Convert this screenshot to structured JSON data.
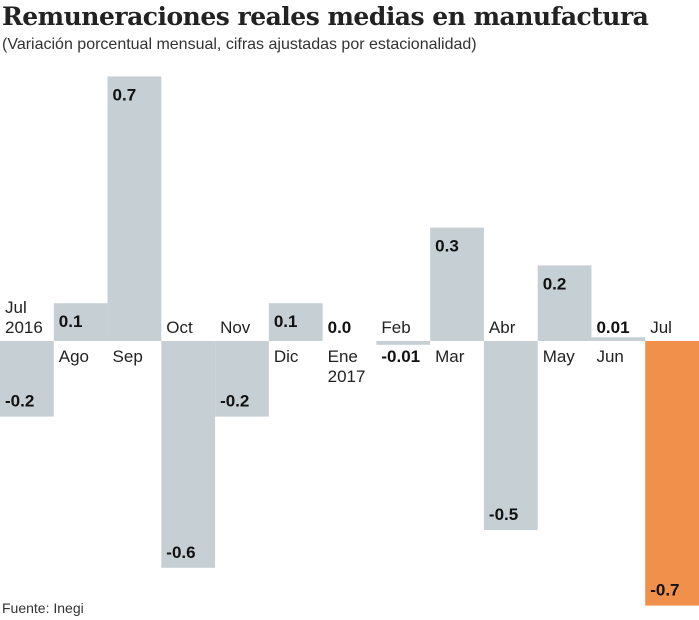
{
  "title": "Remuneraciones reales medias en manufactura",
  "subtitle": "(Variación porcentual  mensual, cifras ajustadas por estacionalidad)",
  "source": "Fuente: Inegi",
  "colors": {
    "bar": "#c6d0d4",
    "highlight": "#f0904a"
  },
  "chart_data": {
    "type": "bar",
    "title": "Remuneraciones reales medias en manufactura",
    "subtitle": "(Variación porcentual  mensual, cifras ajustadas por estacionalidad)",
    "categories": [
      [
        "Jul",
        "2016"
      ],
      [
        "Ago"
      ],
      [
        "Sep"
      ],
      [
        "Oct"
      ],
      [
        "Nov"
      ],
      [
        "Dic"
      ],
      [
        "Ene",
        "2017"
      ],
      [
        "Feb"
      ],
      [
        "Mar"
      ],
      [
        "Abr"
      ],
      [
        "May"
      ],
      [
        "Jun"
      ],
      [
        "Jul"
      ]
    ],
    "values": [
      -0.2,
      0.1,
      0.7,
      -0.6,
      -0.2,
      0.1,
      0.0,
      -0.01,
      0.3,
      -0.5,
      0.2,
      0.01,
      -0.7
    ],
    "labels": [
      "-0.2",
      "0.1",
      "0.7",
      "-0.6",
      "-0.2",
      "0.1",
      "0.0",
      "-0.01",
      "0.3",
      "-0.5",
      "0.2",
      "0.01",
      "-0.7"
    ],
    "highlight_index": 12,
    "ylim": [
      -0.7,
      0.7
    ],
    "grid": false,
    "xlabel": "",
    "ylabel": ""
  }
}
